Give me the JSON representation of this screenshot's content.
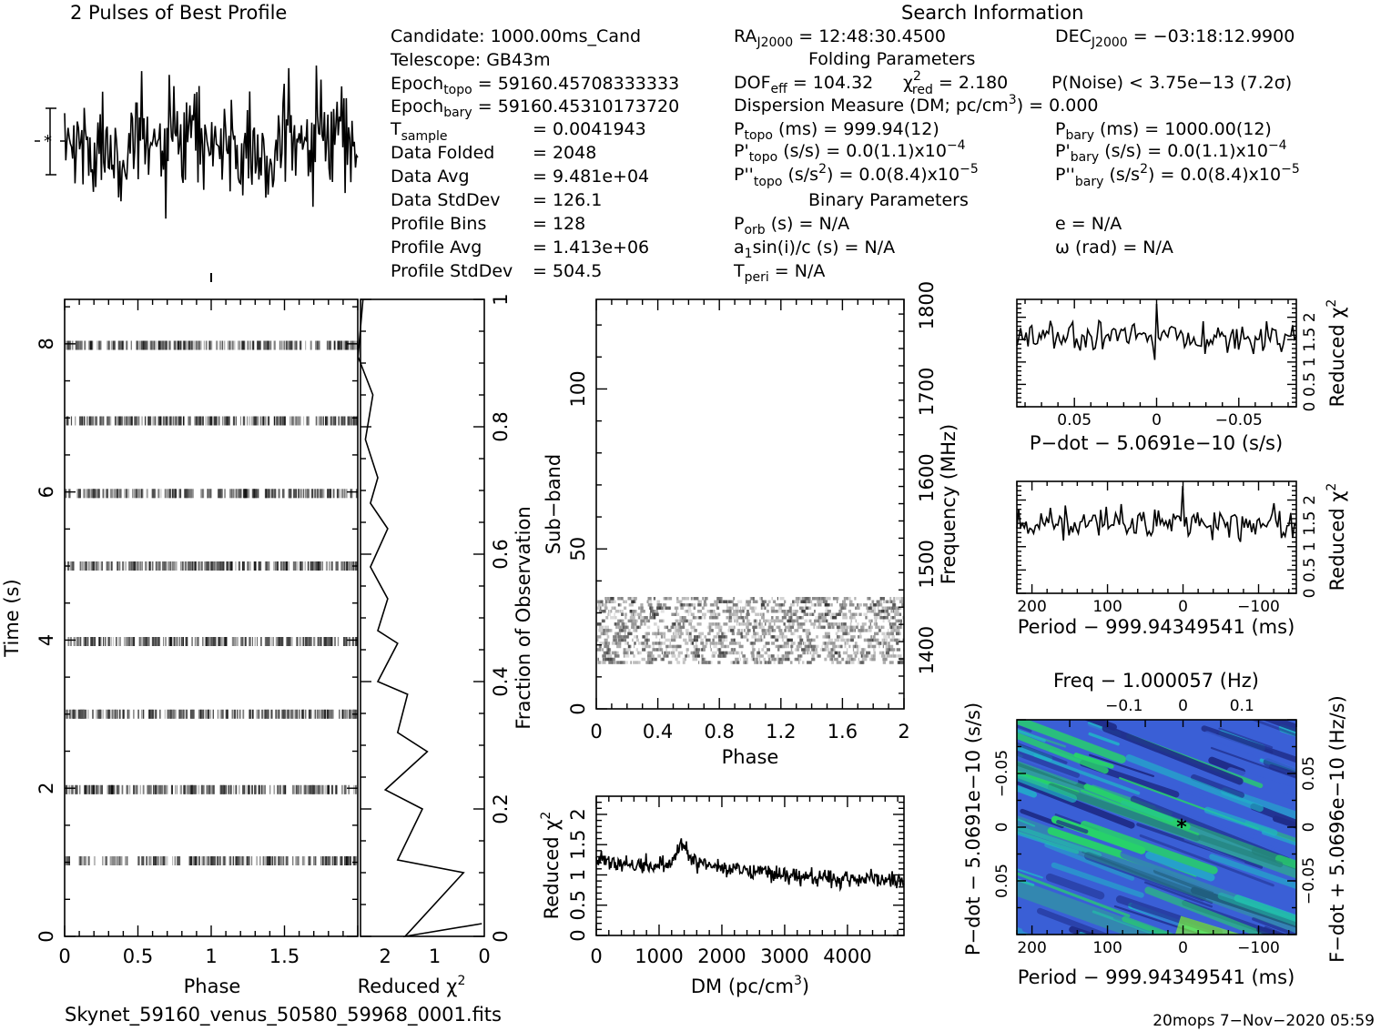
{
  "header": {
    "profile_title": "2 Pulses of Best Profile",
    "search_title": "Search Information",
    "candidate": "Candidate:  1000.00ms_Cand",
    "telescope": "Telescope:  GB43m",
    "epoch_topo_label": "Epoch",
    "epoch_topo_sub": "topo",
    "epoch_topo_value": " = 59160.45708333333",
    "epoch_bary_label": "Epoch",
    "epoch_bary_sub": "bary",
    "epoch_bary_value": " = 59160.45310173720",
    "tsample_label": "T",
    "tsample_sub": "sample",
    "tsample_value": "=   0.0041943",
    "data_folded_label": "Data Folded",
    "data_folded_value": "=   2048",
    "data_avg_label": "Data Avg",
    "data_avg_value": "=   9.481e+04",
    "data_stddev_label": "Data StdDev",
    "data_stddev_value": "=   126.1",
    "profile_bins_label": "Profile Bins",
    "profile_bins_value": "=   128",
    "profile_avg_label": "Profile Avg",
    "profile_avg_value": "=   1.413e+06",
    "profile_stddev_label": "Profile StdDev",
    "profile_stddev_value": "=   504.5",
    "ra_label": "RA",
    "ra_sub": "J2000",
    "ra_value": " = 12:48:30.4500",
    "dec_label": "DEC",
    "dec_sub": "J2000",
    "dec_value": " = −03:18:12.9900",
    "folding_params": "Folding Parameters",
    "dof_label": "DOF",
    "dof_sub": "eff",
    "dof_value": " = 104.32",
    "chi_label": "χ",
    "chi_sup": "2",
    "chi_sub": "red",
    "chi_value": " = 2.180",
    "pnoise": "P(Noise) < 3.75e−13   (7.2σ)",
    "dm_line_a": "Dispersion Measure (DM; pc/cm",
    "dm_line_sup": "3",
    "dm_line_b": ") = 0.000",
    "ptopo_label": "P",
    "ptopo_sub": "topo",
    "ptopo_value": " (ms) =  999.94(12)",
    "pbary_label": "P",
    "pbary_sub": "bary",
    "pbary_value": " (ms) =  1000.00(12)",
    "pdtopo_label": "P'",
    "pdtopo_sub": "topo",
    "pdtopo_value": " (s/s) = 0.0(1.1)x10",
    "pdtopo_exp": "−4",
    "pdbary_label": "P'",
    "pdbary_sub": "bary",
    "pdbary_value": " (s/s) = 0.0(1.1)x10",
    "pdbary_exp": "−4",
    "pddtopo_label": "P''",
    "pddtopo_sub": "topo",
    "pddtopo_value_a": " (s/s",
    "pddtopo_sup2": "2",
    "pddtopo_value_b": ") = 0.0(8.4)x10",
    "pddtopo_exp": "−5",
    "pddbary_label": "P''",
    "pddbary_sub": "bary",
    "pddbary_value_a": " (s/s",
    "pddbary_sup2": "2",
    "pddbary_value_b": ") = 0.0(8.4)x10",
    "pddbary_exp": "−5",
    "binary_params": "Binary Parameters",
    "porb_label": "P",
    "porb_sub": "orb",
    "porb_value": " (s) = N/A",
    "e_value": "e = N/A",
    "asini_a": "a",
    "asini_sub": "1",
    "asini_b": "sin(i)/c (s) = N/A",
    "omega_value": "ω (rad) = N/A",
    "tperi_label": "T",
    "tperi_sub": "peri",
    "tperi_value": " = N/A"
  },
  "footer": {
    "filename": "Skynet_59160_venus_50580_59968_0001.fits",
    "stamp": "20mops  7−Nov−2020 05:59"
  },
  "colors": {
    "ink": "#000000",
    "map_dark": "#1f2d8a",
    "map_blue": "#3a5fd6",
    "map_cyan": "#1fb8c8",
    "map_green": "#27d36a",
    "map_lime": "#7cf03a"
  },
  "chart_data": [
    {
      "id": "profile",
      "type": "line",
      "title": "2 Pulses of Best Profile",
      "description_note": "",
      "xlim": [
        0,
        2
      ],
      "bins": 256,
      "mean": 0,
      "noise_sigma": 1,
      "error_bar_sigma": 1
    },
    {
      "id": "time_phase",
      "type": "heatmap",
      "xlabel": "Phase",
      "ylabel": "Time (s)",
      "xlim": [
        0,
        2
      ],
      "ylim": [
        0,
        8.6
      ],
      "x_ticks": [
        "0",
        "0.5",
        "1",
        "1.5"
      ],
      "y_ticks": [
        "0",
        "2",
        "4",
        "6",
        "8"
      ],
      "pulse_rows_s": [
        1.02,
        1.98,
        3.0,
        3.98,
        5.0,
        5.98,
        6.96,
        7.98
      ]
    },
    {
      "id": "time_chi2",
      "type": "line",
      "xlabel": "Reduced χ",
      "xlabel_sup": "2",
      "ylabel": "Fraction of Observation",
      "xlim": [
        2.5,
        0
      ],
      "ylim": [
        0,
        1
      ],
      "x_ticks": [
        "2",
        "1",
        "0"
      ],
      "y_ticks": [
        "0",
        "0.2",
        "0.4",
        "0.6",
        "0.8",
        "1"
      ],
      "x": [
        0.05,
        1.6,
        0.42,
        1.75,
        1.25,
        2.0,
        1.15,
        1.75,
        1.55,
        2.15,
        1.75,
        2.15,
        1.95,
        2.3,
        1.95,
        2.3,
        2.15,
        2.4,
        2.25,
        2.55,
        2.45
      ],
      "y": [
        0.02,
        0.0,
        0.1,
        0.12,
        0.2,
        0.23,
        0.29,
        0.32,
        0.38,
        0.4,
        0.46,
        0.48,
        0.53,
        0.58,
        0.64,
        0.68,
        0.72,
        0.78,
        0.85,
        0.91,
        1.0
      ]
    },
    {
      "id": "subband_phase",
      "type": "heatmap",
      "xlabel": "Phase",
      "ylabel": "Sub−band",
      "ylabel_right": "Frequency (MHz)",
      "xlim": [
        0,
        2
      ],
      "ylim": [
        0,
        128
      ],
      "x_ticks": [
        "0",
        "0.4",
        "0.8",
        "1.2",
        "1.6",
        "2"
      ],
      "y_ticks": [
        "0",
        "50",
        "100"
      ],
      "y_ticks_right": [
        "1400",
        "1500",
        "1600",
        "1700",
        "1800"
      ],
      "band_subbands": [
        14,
        35
      ]
    },
    {
      "id": "dm_chi2",
      "type": "line",
      "xlabel": "DM (pc/cm",
      "xlabel_sup": "3",
      "xlabel_end": ")",
      "ylabel": "Reduced χ",
      "ylabel_sup": "2",
      "xlim": [
        0,
        4900
      ],
      "ylim": [
        0,
        2.3
      ],
      "x_ticks": [
        "0",
        "1000",
        "2000",
        "3000",
        "4000"
      ],
      "y_ticks": [
        "0",
        "0.5",
        "1",
        "1.5",
        "2"
      ],
      "trend_x": [
        0,
        600,
        1200,
        1350,
        1500,
        2000,
        3000,
        4000,
        4900
      ],
      "trend_y": [
        1.3,
        1.15,
        1.15,
        1.55,
        1.25,
        1.1,
        1.0,
        0.95,
        0.9
      ]
    },
    {
      "id": "pdot_chi2",
      "type": "line",
      "xlabel": "P−dot − 5.0691e−10 (s/s)",
      "ylabel": "Reduced χ",
      "ylabel_sup": "2",
      "xlim": [
        0.085,
        -0.085
      ],
      "ylim": [
        0,
        2.4
      ],
      "x_ticks": [
        "0.05",
        "0",
        "−0.05"
      ],
      "y_ticks": [
        "0",
        "0.5",
        "1",
        "1.5",
        "2"
      ],
      "mean": 1.55,
      "peak_at": 0,
      "peak_value": 2.3
    },
    {
      "id": "period_chi2",
      "type": "line",
      "xlabel": "Period − 999.94349541 (ms)",
      "ylabel": "Reduced χ",
      "ylabel_sup": "2",
      "xlim": [
        220,
        -150
      ],
      "ylim": [
        0,
        2.4
      ],
      "x_ticks": [
        "200",
        "100",
        "0",
        "−100"
      ],
      "y_ticks": [
        "0",
        "0.5",
        "1",
        "1.5",
        "2"
      ],
      "mean": 1.5,
      "peak_at": 0,
      "peak_value": 2.3
    },
    {
      "id": "period_pdot_map",
      "type": "heatmap",
      "top_label": "Freq − 1.000057 (Hz)",
      "xlabel": "Period − 999.94349541 (ms)",
      "ylabel": "P−dot − 5.0691e−10 (s/s)",
      "ylabel_right": "F−dot + 5.0696e−10 (Hz/s)",
      "xlim": [
        220,
        -150
      ],
      "ylim": [
        0.1,
        -0.1
      ],
      "x_ticks": [
        "200",
        "100",
        "0",
        "−100"
      ],
      "top_ticks": [
        "−0.1",
        "0",
        "0.1"
      ],
      "y_ticks": [
        "−0.05",
        "0",
        "0.05"
      ],
      "y_ticks_right": [
        "0.05",
        "0",
        "−0.05"
      ],
      "best_marker": [
        0,
        0
      ]
    }
  ]
}
